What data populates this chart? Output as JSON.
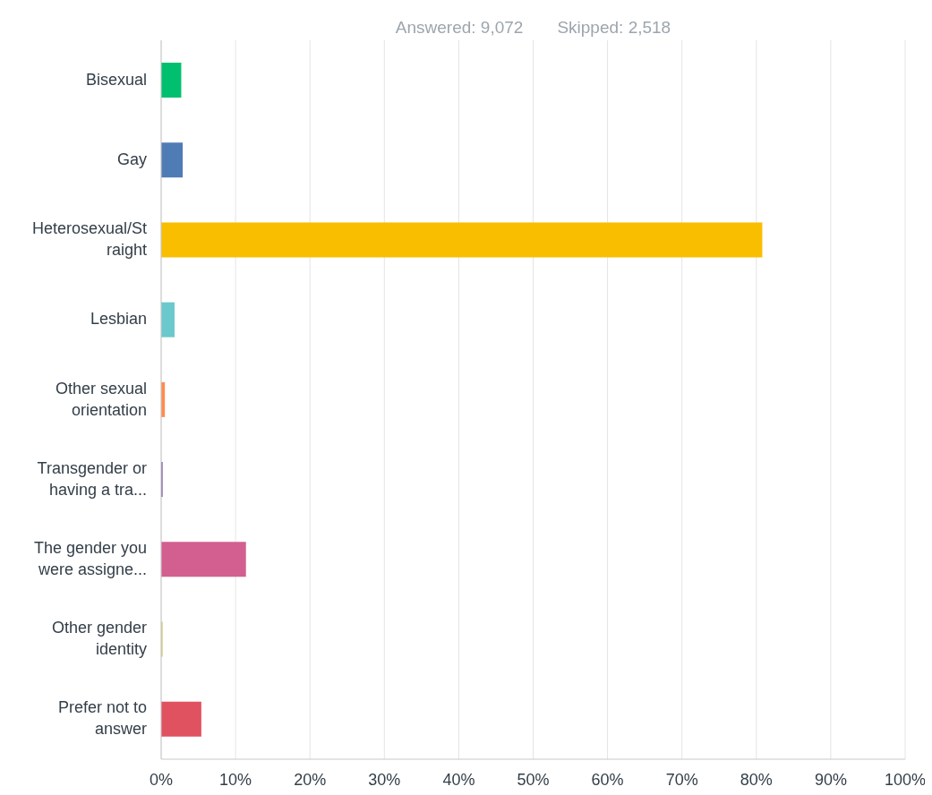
{
  "chart_data": {
    "type": "bar",
    "orientation": "horizontal",
    "annotations": [
      "Answered: 9,072",
      "Skipped: 2,518"
    ],
    "categories": [
      "Bisexual",
      "Gay",
      "Heterosexual/Straight",
      "Lesbian",
      "Other sexual orientation",
      "Transgender or having a tra...",
      "The gender you were assigne...",
      "Other gender identity",
      "Prefer not to answer"
    ],
    "values": [
      2.7,
      2.9,
      80.8,
      1.8,
      0.5,
      0.2,
      11.4,
      0.2,
      5.4
    ],
    "colors": [
      "#00bf6f",
      "#507cb6",
      "#f9be00",
      "#6bc8cd",
      "#ff8b4f",
      "#7d5ba6",
      "#d25f90",
      "#d6c876",
      "#e05260"
    ],
    "xlim": [
      0,
      100
    ],
    "xticks": [
      {
        "value": 0,
        "label": "0%"
      },
      {
        "value": 10,
        "label": "10%"
      },
      {
        "value": 20,
        "label": "20%"
      },
      {
        "value": 30,
        "label": "30%"
      },
      {
        "value": 40,
        "label": "40%"
      },
      {
        "value": 50,
        "label": "50%"
      },
      {
        "value": 60,
        "label": "60%"
      },
      {
        "value": 70,
        "label": "70%"
      },
      {
        "value": 80,
        "label": "80%"
      },
      {
        "value": 90,
        "label": "90%"
      },
      {
        "value": 100,
        "label": "100%"
      }
    ],
    "grid": "x"
  }
}
